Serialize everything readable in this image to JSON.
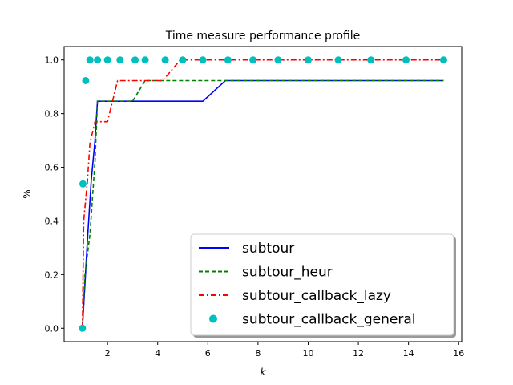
{
  "chart_data": {
    "type": "line",
    "title": "Time measure performance profile",
    "xlabel": "k",
    "ylabel": "%",
    "xlim": [
      0.27,
      16.12
    ],
    "ylim": [
      -0.05,
      1.05
    ],
    "xticks": [
      2,
      4,
      6,
      8,
      10,
      12,
      14,
      16
    ],
    "yticks": [
      0.0,
      0.2,
      0.4,
      0.6,
      0.8,
      1.0
    ],
    "xtick_labels": [
      "2",
      "4",
      "6",
      "8",
      "10",
      "12",
      "14",
      "16"
    ],
    "ytick_labels": [
      "0.0",
      "0.2",
      "0.4",
      "0.6",
      "0.8",
      "1.0"
    ],
    "grid": false,
    "legend_position": "lower-right",
    "series": [
      {
        "name": "subtour",
        "style": "solid",
        "color": "#0000ff",
        "x": [
          1.0,
          1.2,
          1.35,
          1.5,
          1.6,
          5.8,
          6.7,
          15.4
        ],
        "y": [
          0.0,
          0.33,
          0.55,
          0.7,
          0.846,
          0.846,
          0.923,
          0.923
        ]
      },
      {
        "name": "subtour_heur",
        "style": "dashed",
        "color": "#008000",
        "x": [
          1.0,
          1.1,
          1.3,
          1.5,
          1.6,
          3.0,
          3.5,
          15.4
        ],
        "y": [
          0.0,
          0.2,
          0.35,
          0.62,
          0.846,
          0.846,
          0.923,
          0.923
        ]
      },
      {
        "name": "subtour_callback_lazy",
        "style": "dashdot",
        "color": "#ff0000",
        "x": [
          1.0,
          1.05,
          1.2,
          1.3,
          1.5,
          1.6,
          2.0,
          2.4,
          4.2,
          4.9,
          15.4
        ],
        "y": [
          0.0,
          0.4,
          0.55,
          0.69,
          0.77,
          0.77,
          0.77,
          0.923,
          0.923,
          1.0,
          1.0
        ]
      },
      {
        "name": "subtour_callback_general",
        "style": "markers",
        "color": "#00bfbf",
        "x": [
          1.0,
          1.02,
          1.13,
          1.3,
          1.6,
          2.0,
          2.5,
          3.1,
          3.5,
          4.3,
          5.0,
          5.8,
          6.8,
          7.8,
          8.8,
          10.0,
          11.2,
          12.5,
          13.9,
          15.4
        ],
        "y": [
          0.0,
          0.538,
          0.923,
          1.0,
          1.0,
          1.0,
          1.0,
          1.0,
          1.0,
          1.0,
          1.0,
          1.0,
          1.0,
          1.0,
          1.0,
          1.0,
          1.0,
          1.0,
          1.0,
          1.0
        ]
      }
    ]
  }
}
